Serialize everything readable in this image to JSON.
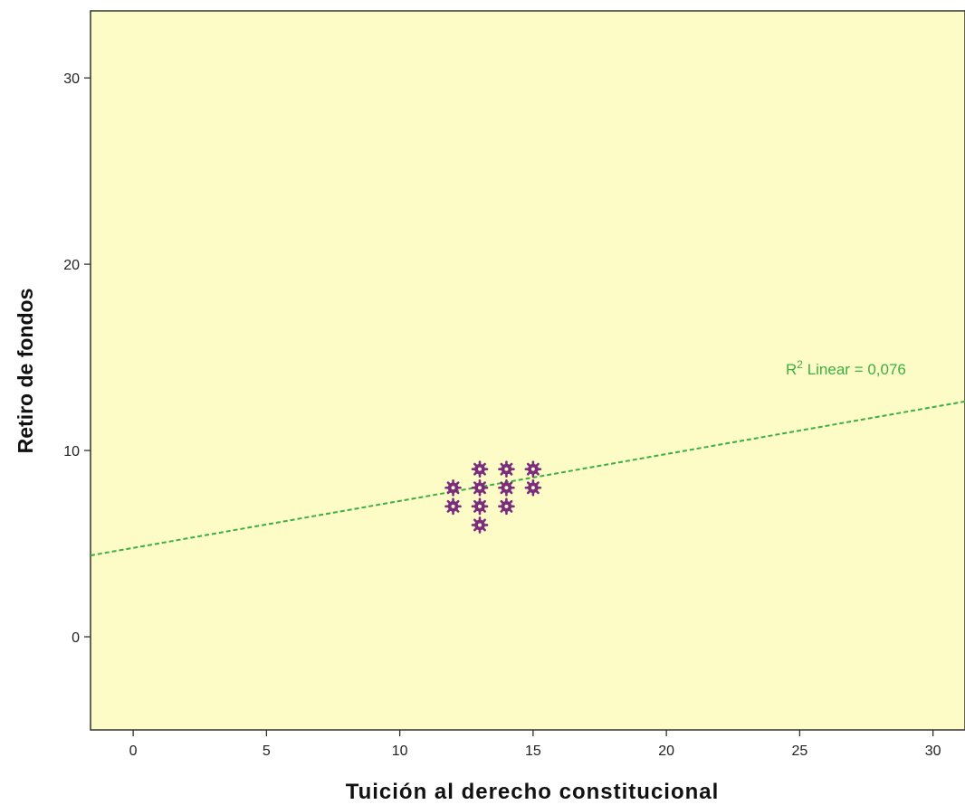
{
  "chart_data": {
    "type": "scatter",
    "xlabel": "Tuición al derecho constitucional",
    "ylabel": "Retiro de fondos",
    "xlim": [
      -1.6,
      31.2
    ],
    "ylim": [
      -5,
      33.6
    ],
    "xticks": [
      0,
      5,
      10,
      15,
      20,
      25,
      30
    ],
    "yticks": [
      0,
      10,
      20,
      30
    ],
    "grid": false,
    "background_color": "#fdfbc6",
    "marker": "asterisk",
    "marker_color": "#7b2c7c",
    "points": [
      {
        "x": 12,
        "y": 8
      },
      {
        "x": 12,
        "y": 7
      },
      {
        "x": 13,
        "y": 9
      },
      {
        "x": 13,
        "y": 8
      },
      {
        "x": 13,
        "y": 7
      },
      {
        "x": 13,
        "y": 6
      },
      {
        "x": 14,
        "y": 9
      },
      {
        "x": 14,
        "y": 8
      },
      {
        "x": 14,
        "y": 7
      },
      {
        "x": 15,
        "y": 9
      },
      {
        "x": 15,
        "y": 8
      }
    ],
    "fit_line": {
      "type": "linear",
      "intercept": 4.77,
      "slope": 0.252,
      "color": "#3cb043",
      "label_prefix": "R",
      "label_sup": "2",
      "label_suffix": " Linear = 0,076"
    }
  }
}
